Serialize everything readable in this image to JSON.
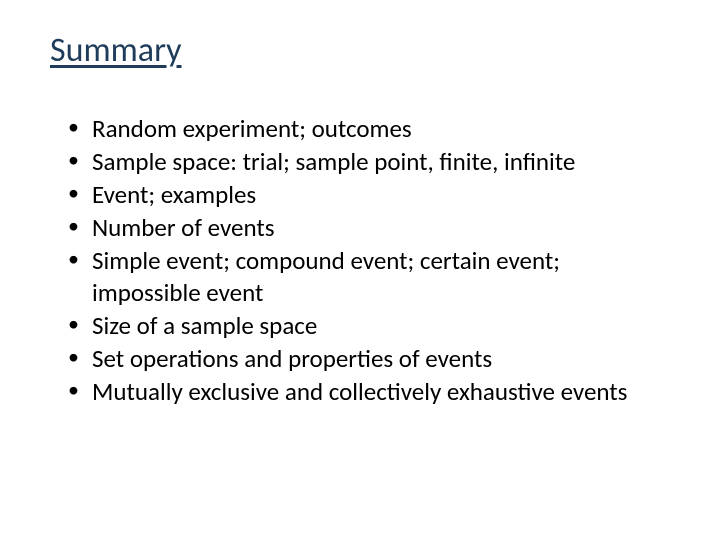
{
  "slide": {
    "title": "Summary",
    "title_color": "#1f3c5a",
    "title_fontsize": 34,
    "title_underline": true,
    "body_fontsize": 25,
    "body_color": "#000000",
    "background_color": "#ffffff",
    "font_family": "Calibri",
    "bullets": [
      "Random experiment; outcomes",
      "Sample space: trial; sample point, finite, infinite",
      "Event; examples",
      "Number of events",
      "Simple event; compound event; certain event; impossible event",
      "Size of a sample space",
      "Set operations and properties of events",
      "Mutually exclusive and collectively exhaustive events"
    ]
  }
}
